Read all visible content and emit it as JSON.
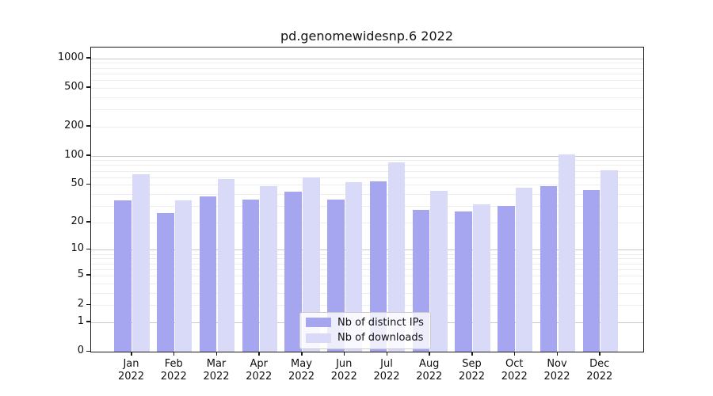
{
  "chart_data": {
    "type": "bar",
    "title": "pd.genomewidesnp.6 2022",
    "year": "2022",
    "categories": [
      "Jan",
      "Feb",
      "Mar",
      "Apr",
      "May",
      "Jun",
      "Jul",
      "Aug",
      "Sep",
      "Oct",
      "Nov",
      "Dec"
    ],
    "series": [
      {
        "name": "Nb of distinct IPs",
        "color": "#a5a5f0",
        "values": [
          34,
          25,
          38,
          35,
          42,
          35,
          54,
          27,
          26,
          30,
          48,
          44
        ]
      },
      {
        "name": "Nb of downloads",
        "color": "#d9d9f8",
        "values": [
          64,
          34,
          57,
          48,
          60,
          53,
          85,
          43,
          31,
          47,
          104,
          71
        ]
      }
    ],
    "y_axis": {
      "scale": "log1p",
      "ticks": [
        0,
        1,
        2,
        5,
        10,
        20,
        50,
        100,
        200,
        500,
        1000
      ],
      "range": [
        0,
        1280
      ]
    },
    "x_axis": {
      "tick_label_lines": 2
    },
    "gridlines": {
      "major": [
        1,
        10,
        100,
        1000
      ],
      "minor": [
        2,
        3,
        4,
        5,
        6,
        7,
        8,
        9,
        20,
        30,
        40,
        50,
        60,
        70,
        80,
        90,
        200,
        300,
        400,
        500,
        600,
        700,
        800,
        900
      ]
    },
    "legend": {
      "position": "bottom-center"
    },
    "colors": {
      "grid_major": "#c8c8c8",
      "grid_minor": "#ededed",
      "spine": "#1a1a1a",
      "text": "#111111",
      "background": "#ffffff"
    }
  }
}
